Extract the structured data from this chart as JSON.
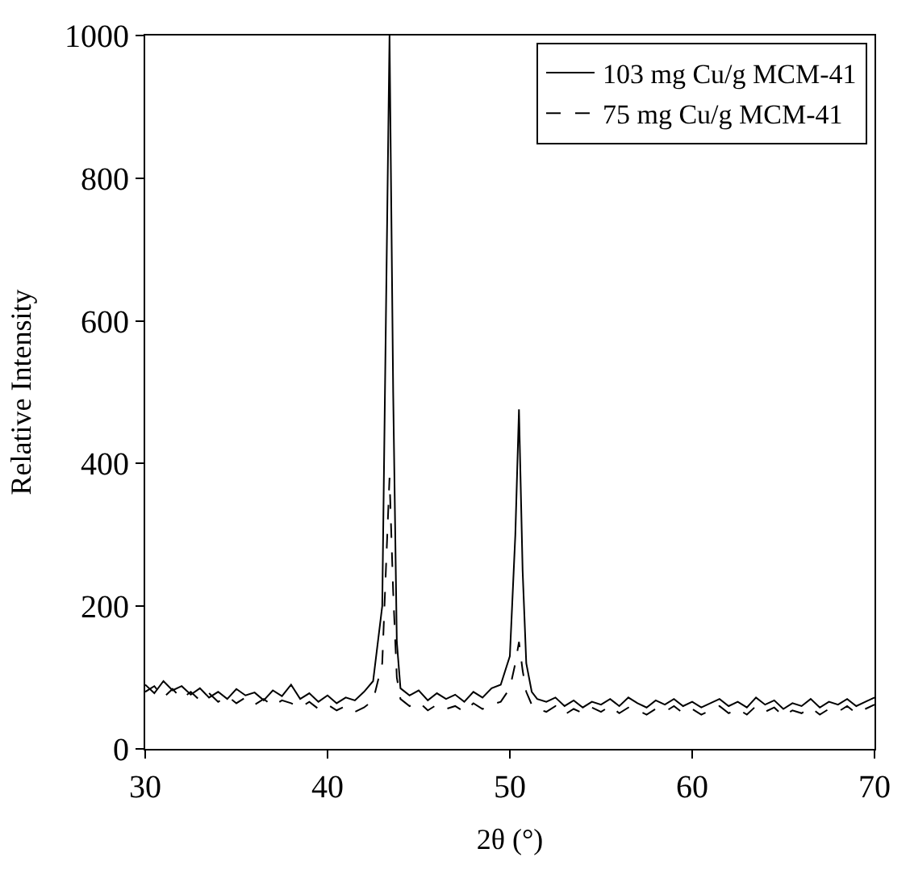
{
  "chart_data": {
    "type": "line",
    "xlabel": "2θ (°)",
    "ylabel": "Relative Intensity",
    "xlim": [
      30,
      70
    ],
    "xticks": [
      30,
      40,
      50,
      60,
      70
    ],
    "ylim": [
      0,
      1000
    ],
    "yticks": [
      0,
      200,
      400,
      600,
      800,
      1000
    ],
    "legend": "top right",
    "marker": "none",
    "x": [
      30,
      30.5,
      31,
      31.5,
      32,
      32.5,
      33,
      33.5,
      34,
      34.5,
      35,
      35.5,
      36,
      36.5,
      37,
      37.5,
      38,
      38.5,
      39,
      39.5,
      40,
      40.5,
      41,
      41.5,
      42,
      42.5,
      43,
      43.2,
      43.4,
      43.6,
      43.8,
      44,
      44.5,
      45,
      45.5,
      46,
      46.5,
      47,
      47.5,
      48,
      48.5,
      49,
      49.5,
      50,
      50.3,
      50.5,
      50.7,
      50.9,
      51.2,
      51.5,
      52,
      52.5,
      53,
      53.5,
      54,
      54.5,
      55,
      55.5,
      56,
      56.5,
      57,
      57.5,
      58,
      58.5,
      59,
      59.5,
      60,
      60.5,
      61,
      61.5,
      62,
      62.5,
      63,
      63.5,
      64,
      64.5,
      65,
      65.5,
      66,
      66.5,
      67,
      67.5,
      68,
      68.5,
      69,
      69.5,
      70
    ],
    "series": [
      {
        "name": "103 mg Cu/g MCM-41",
        "color": "#000000",
        "line_style": "solid",
        "values": [
          90,
          78,
          95,
          82,
          88,
          76,
          85,
          72,
          80,
          70,
          84,
          75,
          79,
          68,
          82,
          74,
          90,
          70,
          78,
          66,
          75,
          64,
          72,
          68,
          80,
          95,
          200,
          600,
          1000,
          500,
          150,
          85,
          75,
          82,
          68,
          78,
          70,
          76,
          66,
          80,
          72,
          85,
          90,
          130,
          300,
          476,
          250,
          120,
          80,
          70,
          66,
          72,
          60,
          68,
          58,
          66,
          62,
          70,
          60,
          72,
          64,
          58,
          68,
          62,
          70,
          60,
          66,
          58,
          64,
          70,
          60,
          66,
          58,
          72,
          62,
          68,
          56,
          64,
          60,
          70,
          58,
          66,
          62,
          70,
          60,
          66,
          72
        ]
      },
      {
        "name": "75 mg Cu/g MCM-41",
        "color": "#000000",
        "line_style": "dashed",
        "values": [
          80,
          88,
          72,
          84,
          70,
          80,
          68,
          78,
          66,
          74,
          64,
          72,
          62,
          70,
          60,
          68,
          64,
          58,
          66,
          56,
          62,
          54,
          60,
          52,
          58,
          68,
          120,
          250,
          380,
          220,
          100,
          70,
          60,
          66,
          54,
          62,
          56,
          60,
          52,
          64,
          56,
          62,
          66,
          85,
          120,
          150,
          110,
          80,
          62,
          56,
          52,
          60,
          48,
          56,
          50,
          58,
          52,
          60,
          50,
          58,
          54,
          48,
          56,
          52,
          60,
          50,
          56,
          48,
          54,
          60,
          50,
          56,
          48,
          60,
          52,
          58,
          46,
          54,
          50,
          58,
          48,
          56,
          52,
          60,
          50,
          56,
          62
        ]
      }
    ]
  }
}
